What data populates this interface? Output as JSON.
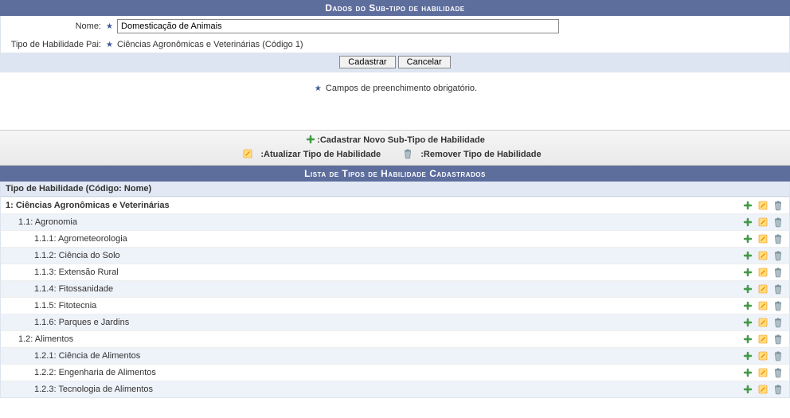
{
  "form": {
    "header": "Dados do Sub-tipo de habilidade",
    "nome_label": "Nome:",
    "nome_value": "Domesticação de Animais",
    "pai_label": "Tipo de Habilidade Pai:",
    "pai_value": "Ciências Agronômicas e Veterinárias (Código 1)",
    "btn_cadastrar": "Cadastrar",
    "btn_cancelar": "Cancelar",
    "required_note": "Campos de preenchimento obrigatório."
  },
  "legend": {
    "add": ":Cadastrar Novo Sub-Tipo de Habilidade",
    "update": ":Atualizar Tipo de Habilidade",
    "remove": ":Remover Tipo de Habilidade"
  },
  "list": {
    "header": "Lista de Tipos de Habilidade Cadastrados",
    "col_header": "Tipo de Habilidade (Código: Nome)",
    "rows": [
      {
        "label": "1: Ciências Agronômicas e Veterinárias",
        "indent": 0,
        "bold": true,
        "alt": false
      },
      {
        "label": "1.1: Agronomia",
        "indent": 1,
        "bold": false,
        "alt": true
      },
      {
        "label": "1.1.1: Agrometeorologia",
        "indent": 2,
        "bold": false,
        "alt": false
      },
      {
        "label": "1.1.2: Ciência do Solo",
        "indent": 2,
        "bold": false,
        "alt": true
      },
      {
        "label": "1.1.3: Extensão Rural",
        "indent": 2,
        "bold": false,
        "alt": false
      },
      {
        "label": "1.1.4: Fitossanidade",
        "indent": 2,
        "bold": false,
        "alt": true
      },
      {
        "label": "1.1.5: Fitotecnia",
        "indent": 2,
        "bold": false,
        "alt": false
      },
      {
        "label": "1.1.6: Parques e Jardins",
        "indent": 2,
        "bold": false,
        "alt": true
      },
      {
        "label": "1.2: Alimentos",
        "indent": 1,
        "bold": false,
        "alt": false
      },
      {
        "label": "1.2.1: Ciência de Alimentos",
        "indent": 2,
        "bold": false,
        "alt": true
      },
      {
        "label": "1.2.2: Engenharia de Alimentos",
        "indent": 2,
        "bold": false,
        "alt": false
      },
      {
        "label": "1.2.3: Tecnologia de Alimentos",
        "indent": 2,
        "bold": false,
        "alt": true
      }
    ]
  },
  "colors": {
    "header_bg": "#5d6d9c",
    "form_border": "#dce4ee",
    "button_bar_bg": "#dde5f2",
    "row_alt_bg": "#eef2f9",
    "col_header_bg": "#e2e9f4"
  }
}
